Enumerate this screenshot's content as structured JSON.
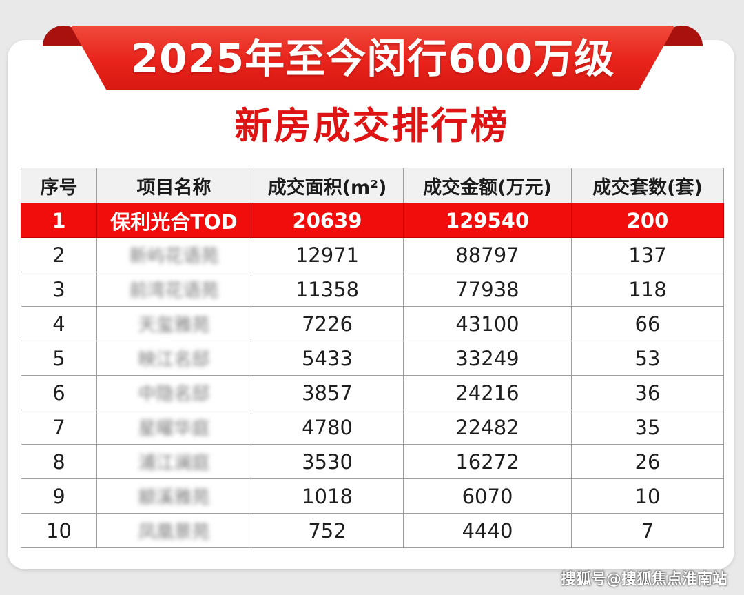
{
  "banner": {
    "title": "2025年至今闵行600万级"
  },
  "subtitle": "新房成交排行榜",
  "table": {
    "headers": {
      "rank": "序号",
      "name": "项目名称",
      "area": "成交面积(m²)",
      "amount": "成交金额(万元)",
      "units": "成交套数(套)"
    },
    "rows": [
      {
        "rank": "1",
        "name": "保利光合TOD",
        "area": "20639",
        "amount": "129540",
        "units": "200"
      },
      {
        "rank": "2",
        "name": "新屿花语苑",
        "area": "12971",
        "amount": "88797",
        "units": "137"
      },
      {
        "rank": "3",
        "name": "前湾花语苑",
        "area": "11358",
        "amount": "77938",
        "units": "118"
      },
      {
        "rank": "4",
        "name": "天玺雅苑",
        "area": "7226",
        "amount": "43100",
        "units": "66"
      },
      {
        "rank": "5",
        "name": "映江名邸",
        "area": "5433",
        "amount": "33249",
        "units": "53"
      },
      {
        "rank": "6",
        "name": "中隐名邸",
        "area": "3857",
        "amount": "24216",
        "units": "36"
      },
      {
        "rank": "7",
        "name": "星曜华庭",
        "area": "4780",
        "amount": "22482",
        "units": "35"
      },
      {
        "rank": "8",
        "name": "浦江澜庭",
        "area": "3530",
        "amount": "16272",
        "units": "26"
      },
      {
        "rank": "9",
        "name": "颛溪雅苑",
        "area": "1018",
        "amount": "6070",
        "units": "10"
      },
      {
        "rank": "10",
        "name": "凤凰景苑",
        "area": "752",
        "amount": "4440",
        "units": "7"
      }
    ]
  },
  "watermark": "搜狐号@搜狐焦点淮南站",
  "colors": {
    "accent_red": "#e8231b",
    "highlight_row": "#f20d0d",
    "subtitle_red": "#de1414",
    "header_bg": "#f1f1f1"
  }
}
